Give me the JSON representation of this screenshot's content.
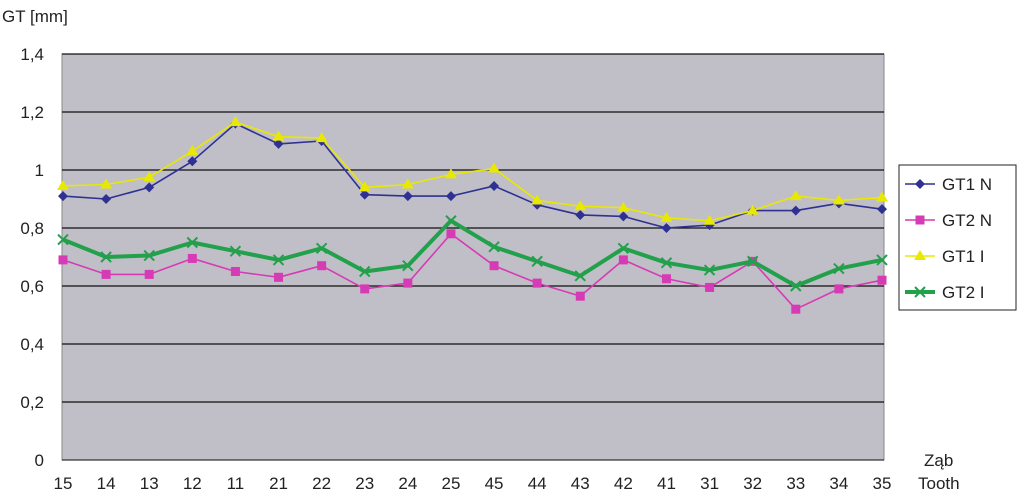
{
  "chart_data": {
    "type": "line",
    "ylabel": "GT [mm]",
    "xlabel_line1": "Ząb",
    "xlabel_line2": "Tooth",
    "ylim": [
      0,
      1.4
    ],
    "yticks": [
      {
        "value": 0,
        "label": "0"
      },
      {
        "value": 0.2,
        "label": "0,2"
      },
      {
        "value": 0.4,
        "label": "0,4"
      },
      {
        "value": 0.6,
        "label": "0,6"
      },
      {
        "value": 0.8,
        "label": "0,8"
      },
      {
        "value": 1,
        "label": "1"
      },
      {
        "value": 1.2,
        "label": "1,2"
      },
      {
        "value": 1.4,
        "label": "1,4"
      }
    ],
    "categories": [
      "15",
      "14",
      "13",
      "12",
      "11",
      "21",
      "22",
      "23",
      "24",
      "25",
      "45",
      "44",
      "43",
      "42",
      "41",
      "31",
      "32",
      "33",
      "34",
      "35"
    ],
    "grid": true,
    "plot_background": "#c0bfc7",
    "legend_position": "right",
    "series": [
      {
        "name": "GT1 N",
        "color": "#2e3192",
        "marker": "diamond",
        "values": [
          0.91,
          0.9,
          0.94,
          1.03,
          1.16,
          1.09,
          1.1,
          0.915,
          0.91,
          0.91,
          0.945,
          0.88,
          0.845,
          0.84,
          0.8,
          0.81,
          0.86,
          0.86,
          0.885,
          0.865
        ]
      },
      {
        "name": "GT2 N",
        "color": "#d63bb5",
        "marker": "square",
        "values": [
          0.69,
          0.64,
          0.64,
          0.695,
          0.65,
          0.63,
          0.67,
          0.59,
          0.61,
          0.78,
          0.67,
          0.61,
          0.565,
          0.69,
          0.625,
          0.595,
          0.685,
          0.52,
          0.59,
          0.62
        ]
      },
      {
        "name": "GT1 I",
        "color": "#e8e800",
        "marker": "triangle",
        "values": [
          0.945,
          0.95,
          0.975,
          1.065,
          1.165,
          1.115,
          1.11,
          0.94,
          0.95,
          0.985,
          1.005,
          0.895,
          0.875,
          0.87,
          0.835,
          0.825,
          0.86,
          0.91,
          0.895,
          0.905
        ]
      },
      {
        "name": "GT2 I",
        "color": "#22a04b",
        "marker": "x",
        "values": [
          0.76,
          0.7,
          0.705,
          0.75,
          0.72,
          0.69,
          0.73,
          0.65,
          0.67,
          0.825,
          0.735,
          0.685,
          0.635,
          0.73,
          0.68,
          0.655,
          0.685,
          0.6,
          0.66,
          0.69
        ]
      }
    ]
  }
}
